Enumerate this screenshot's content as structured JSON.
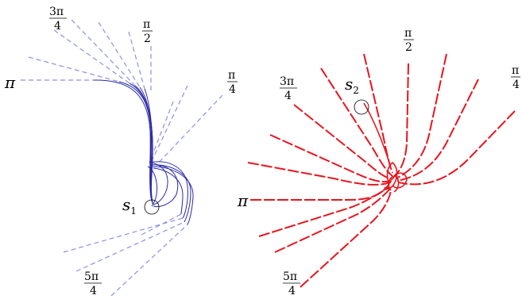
{
  "left_panel": {
    "label_pi": "π",
    "label_3pi4_num": "3π",
    "label_3pi4_den": "4",
    "label_pi2_num": "π",
    "label_pi2_den": "2",
    "label_pi4_num": "π",
    "label_pi4_den": "4",
    "label_5pi4_num": "5π",
    "label_5pi4_den": "4",
    "point_letter": "s",
    "point_sub": "1",
    "dash_color": "#8f8fe6",
    "curve_color": "#2a2aa8"
  },
  "right_panel": {
    "label_pi": "π",
    "label_3pi4_num": "3π",
    "label_3pi4_den": "4",
    "label_pi2_num": "π",
    "label_pi2_den": "2",
    "label_pi4_num": "π",
    "label_pi4_den": "4",
    "label_5pi4_num": "5π",
    "label_5pi4_den": "4",
    "point_letter": "s",
    "point_sub": "2",
    "curve_color": "#e8141e"
  }
}
